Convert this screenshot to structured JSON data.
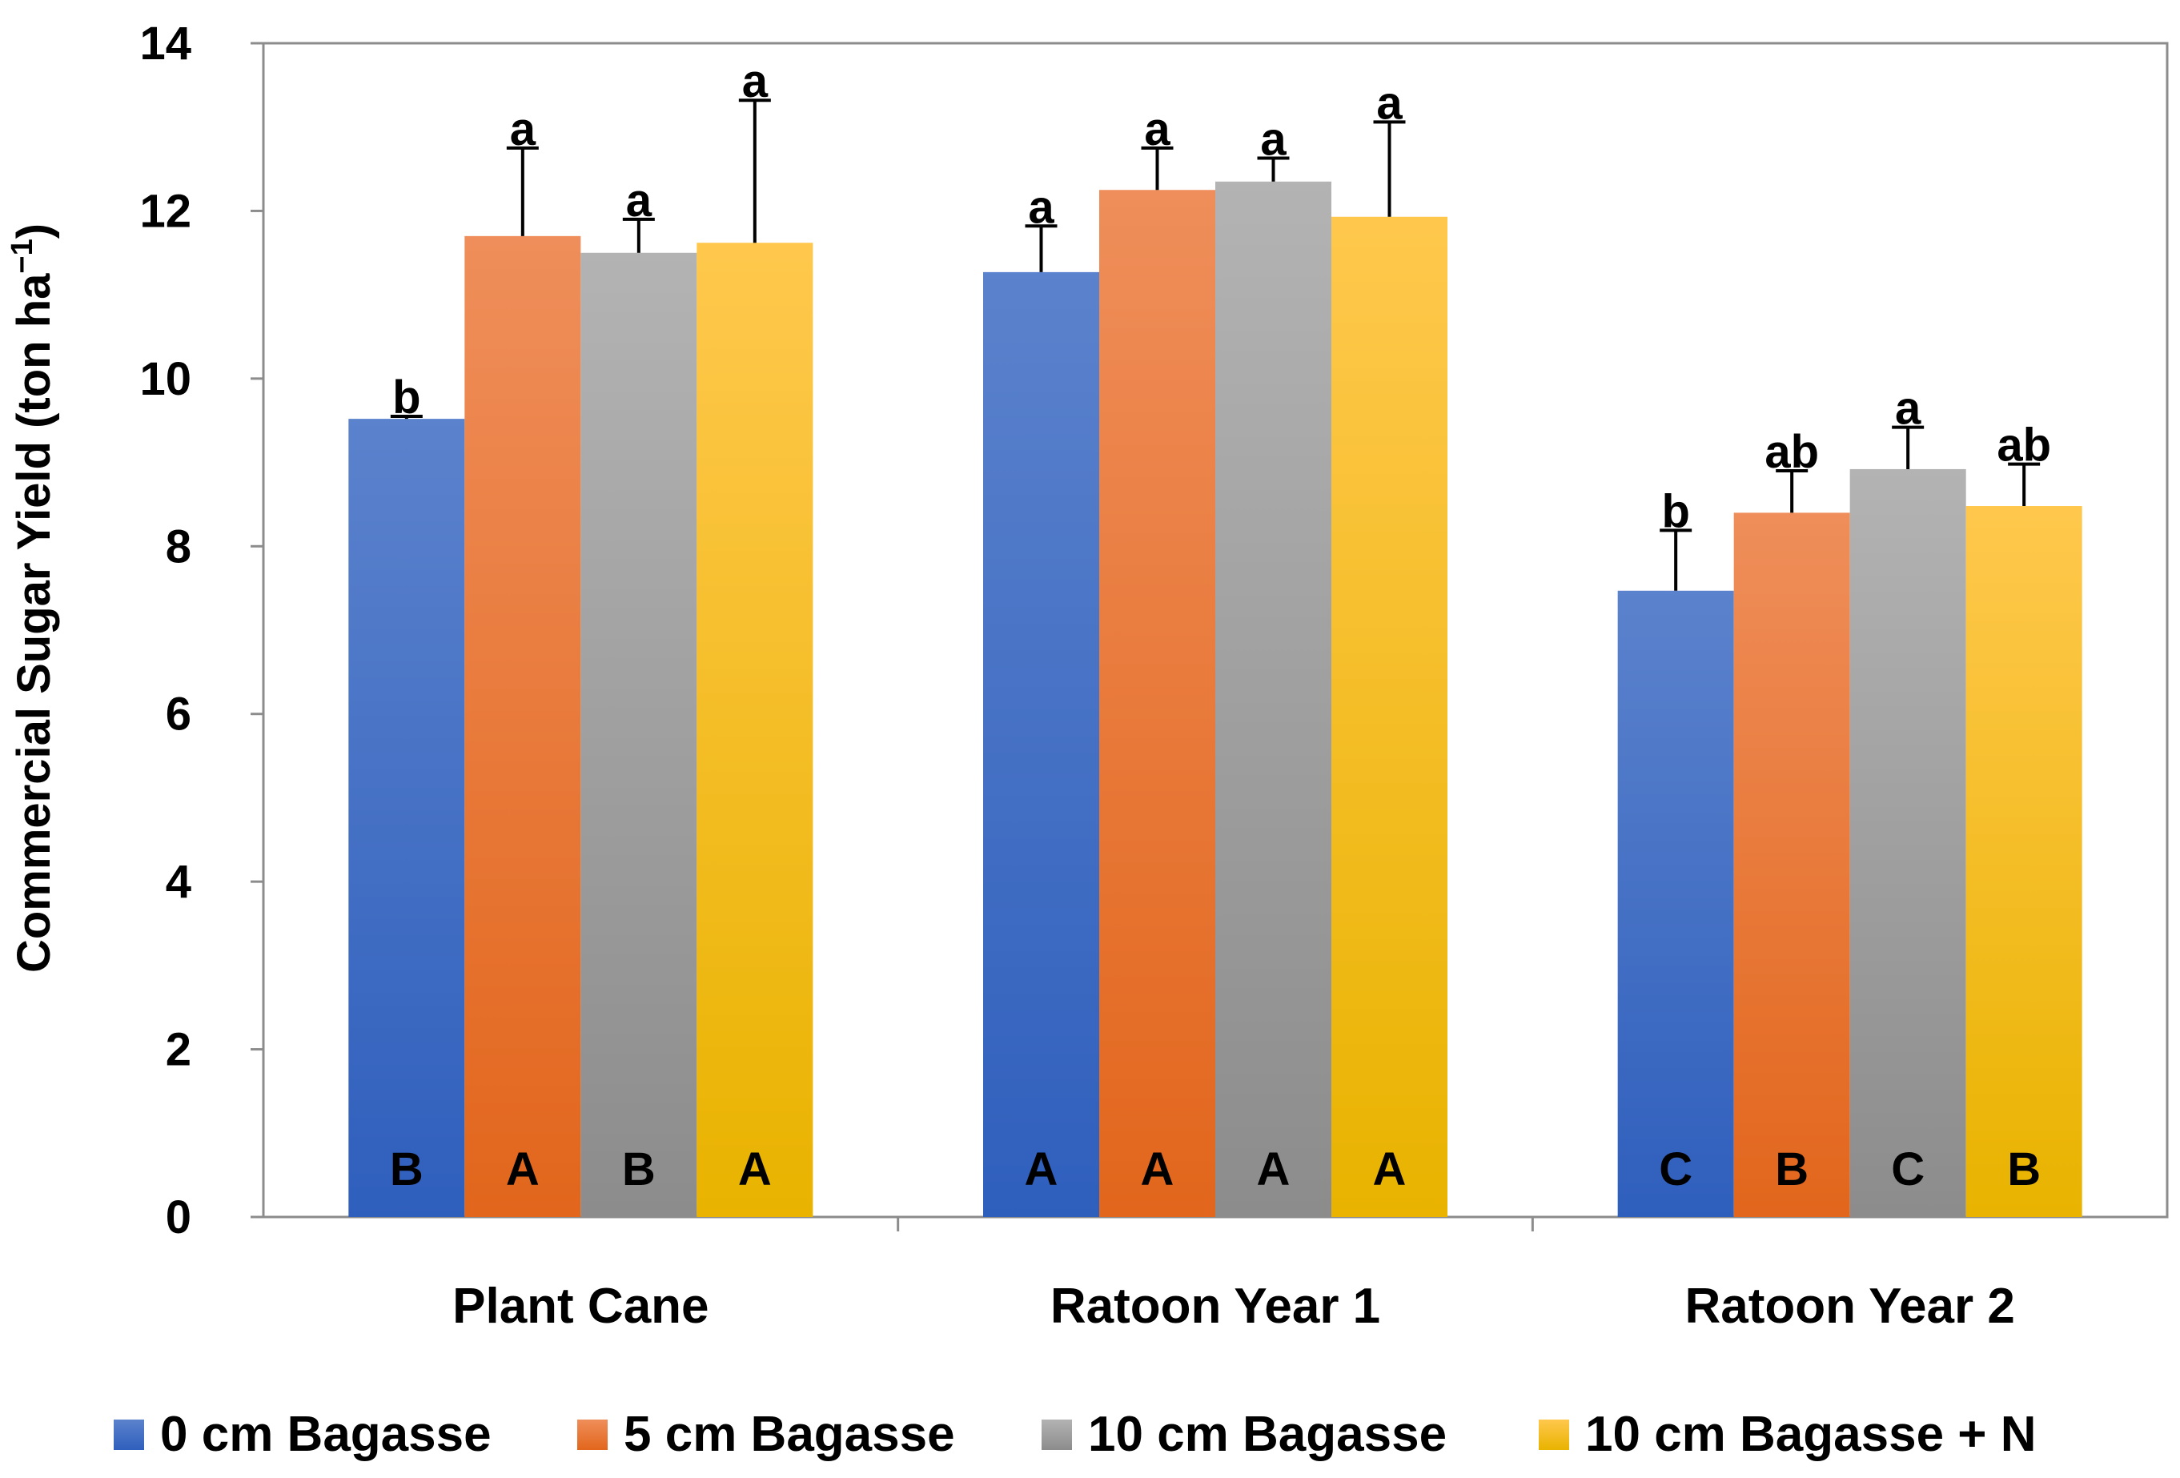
{
  "chart_data": {
    "type": "bar",
    "title": "",
    "xlabel": "",
    "ylabel": "Commercial Sugar Yield (ton ha",
    "ylabel_sup": "−1",
    "ylabel_close": ")",
    "ylim": [
      0,
      14
    ],
    "yticks": [
      0,
      2,
      4,
      6,
      8,
      10,
      12,
      14
    ],
    "ytick_labels": [
      "0",
      "2",
      "4",
      "6",
      "8",
      "10",
      "12",
      "14"
    ],
    "grid": false,
    "legend_position": "bottom",
    "categories": [
      "Plant Cane",
      "Ratoon Year 1",
      "Ratoon Year 2"
    ],
    "series": [
      {
        "name": "0 cm Bagasse",
        "color_top": "#5b82cc",
        "color_bottom": "#2f5fbd",
        "values": [
          9.52,
          11.27,
          7.47
        ],
        "errors": [
          0.03,
          0.55,
          0.72
        ],
        "letters_top": [
          "b",
          "a",
          "b"
        ],
        "letters_bottom": [
          "B",
          "A",
          "C"
        ]
      },
      {
        "name": "5 cm Bagasse",
        "color_top": "#ef8e5a",
        "color_bottom": "#e2661c",
        "values": [
          11.7,
          12.25,
          8.4
        ],
        "errors": [
          1.05,
          0.5,
          0.5
        ],
        "letters_top": [
          "a",
          "a",
          "ab"
        ],
        "letters_bottom": [
          "A",
          "A",
          "B"
        ]
      },
      {
        "name": "10 cm Bagasse",
        "color_top": "#b3b3b3",
        "color_bottom": "#8c8c8c",
        "values": [
          11.5,
          12.35,
          8.92
        ],
        "errors": [
          0.4,
          0.28,
          0.5
        ],
        "letters_top": [
          "a",
          "a",
          "a"
        ],
        "letters_bottom": [
          "B",
          "A",
          "C"
        ]
      },
      {
        "name": "10 cm Bagasse + N",
        "color_top": "#ffc84d",
        "color_bottom": "#e9b300",
        "values": [
          11.62,
          11.93,
          8.48
        ],
        "errors": [
          1.7,
          1.13,
          0.5
        ],
        "letters_top": [
          "a",
          "a",
          "ab"
        ],
        "letters_bottom": [
          "A",
          "A",
          "B"
        ]
      }
    ]
  }
}
